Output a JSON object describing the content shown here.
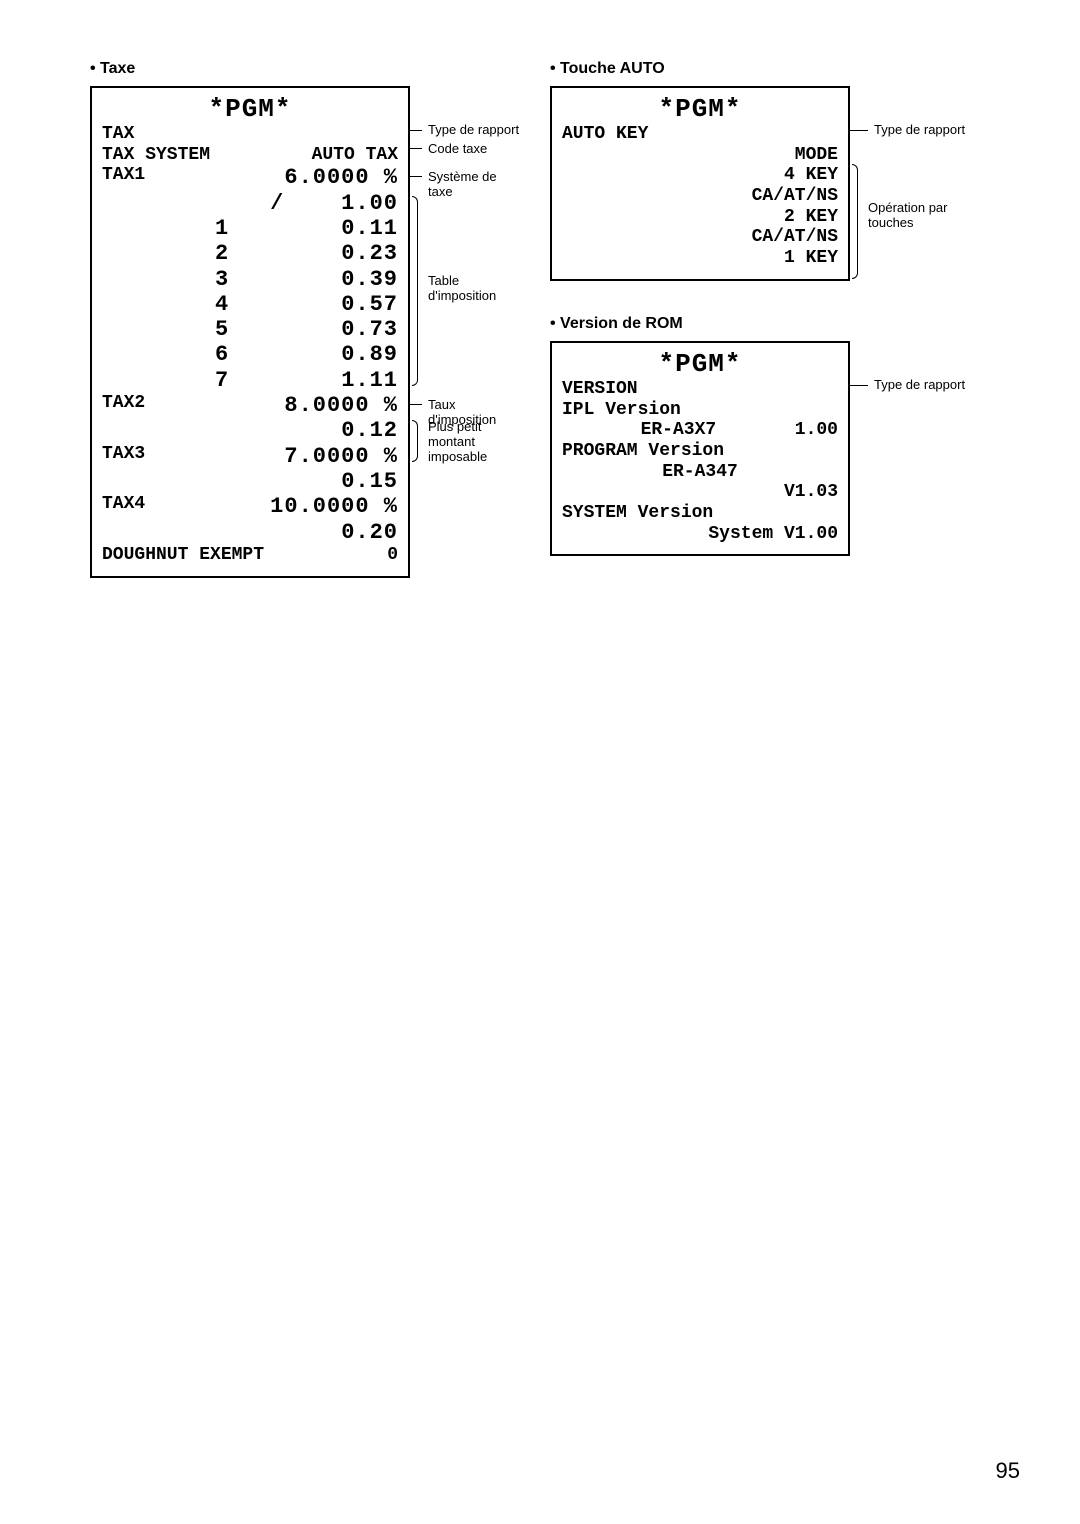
{
  "pageNumber": "95",
  "taxe": {
    "title": "• Taxe",
    "header": "*PGM*",
    "rows": [
      {
        "l": "TAX",
        "r": ""
      },
      {
        "l": "",
        "r": ""
      },
      {
        "l": "TAX SYSTEM",
        "r": "AUTO TAX"
      },
      {
        "l": "TAX1",
        "r": "6.0000 %",
        "big": true
      },
      {
        "l": "",
        "r": "/    1.00",
        "big": true
      },
      {
        "l": "",
        "l2": "1",
        "r": "0.11",
        "big": true
      },
      {
        "l": "",
        "l2": "2",
        "r": "0.23",
        "big": true
      },
      {
        "l": "",
        "l2": "3",
        "r": "0.39",
        "big": true
      },
      {
        "l": "",
        "l2": "4",
        "r": "0.57",
        "big": true
      },
      {
        "l": "",
        "l2": "5",
        "r": "0.73",
        "big": true
      },
      {
        "l": "",
        "l2": "6",
        "r": "0.89",
        "big": true
      },
      {
        "l": "",
        "l2": "7",
        "r": "1.11",
        "big": true
      },
      {
        "l": "TAX2",
        "r": "8.0000 %",
        "big": true
      },
      {
        "l": "",
        "r": "0.12",
        "big": true
      },
      {
        "l": "TAX3",
        "r": "7.0000 %",
        "big": true
      },
      {
        "l": "",
        "r": "0.15",
        "big": true
      },
      {
        "l": "TAX4",
        "r": "10.0000 %",
        "big": true
      },
      {
        "l": "",
        "r": "0.20",
        "big": true
      },
      {
        "l": "DOUGHNUT EXEMPT",
        "r": "0"
      }
    ],
    "annotations": {
      "typeRapport": "Type de rapport",
      "codeTaxe": "Code taxe",
      "systemeTaxe": "Système de taxe",
      "tableImposition": "Table d'imposition",
      "tauxImposition": "Taux d'imposition",
      "plusPetit": "Plus petit montant imposable"
    }
  },
  "autokey": {
    "title": "• Touche AUTO",
    "header": "*PGM*",
    "rows": [
      {
        "l": "AUTO KEY",
        "r": ""
      },
      {
        "l": "",
        "r": ""
      },
      {
        "l": "",
        "r": "MODE"
      },
      {
        "l": "",
        "r": "4 KEY"
      },
      {
        "l": "",
        "r": "CA/AT/NS"
      },
      {
        "l": "",
        "r": "2 KEY"
      },
      {
        "l": "",
        "r": "CA/AT/NS"
      },
      {
        "l": "",
        "r": "1 KEY"
      }
    ],
    "annotations": {
      "typeRapport": "Type de rapport",
      "operation": "Opération par touches"
    }
  },
  "version": {
    "title": "• Version de ROM",
    "header": "*PGM*",
    "rows": [
      {
        "l": "VERSION",
        "r": ""
      },
      {
        "l": "",
        "r": ""
      },
      {
        "l": "IPL Version",
        "r": ""
      },
      {
        "l": "",
        "mid": "ER-A3X7",
        "r": "1.00"
      },
      {
        "l": "PROGRAM Version",
        "r": ""
      },
      {
        "l": "",
        "mid": "ER-A347",
        "r": ""
      },
      {
        "l": "",
        "r": "V1.03"
      },
      {
        "l": "SYSTEM Version",
        "r": ""
      },
      {
        "l": "",
        "r": "System V1.00"
      }
    ],
    "annotations": {
      "typeRapport": "Type de rapport"
    }
  }
}
